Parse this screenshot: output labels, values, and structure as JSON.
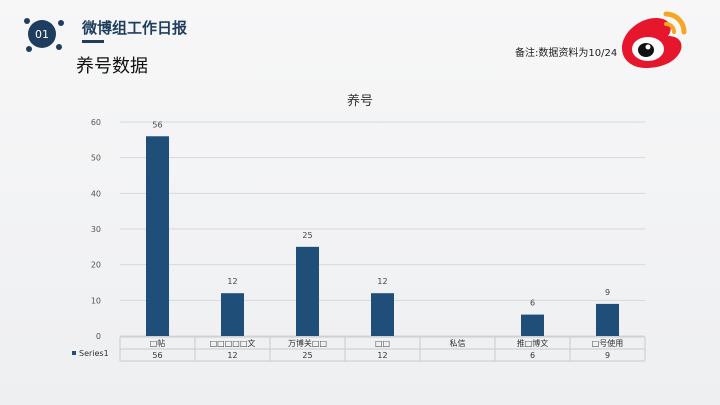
{
  "header": {
    "badge": "01",
    "title": "微博组工作日报"
  },
  "page_title": "养号数据",
  "note": "备注:数据资料为10/24",
  "colors": {
    "bar": "#1f4e79",
    "accent": "#1f3e5f",
    "logo_red": "#e6162d",
    "logo_orange": "#f5a623"
  },
  "chart_data": {
    "type": "bar",
    "title": "养号",
    "categories": [
      "□帖",
      "□□□□□文",
      "万博关□□",
      "□□",
      "私信",
      "推□博文",
      "□号使用"
    ],
    "series": [
      {
        "name": "Series1",
        "values": [
          56,
          12,
          25,
          12,
          null,
          6,
          9
        ]
      }
    ],
    "table_values": [
      "56",
      "12",
      "25",
      "12",
      "",
      "6",
      "9"
    ],
    "y_ticks": [
      "0",
      "10",
      "20",
      "30",
      "40",
      "50",
      "60"
    ],
    "ylim": [
      0,
      60
    ],
    "grid": true,
    "legend": "data-table"
  }
}
